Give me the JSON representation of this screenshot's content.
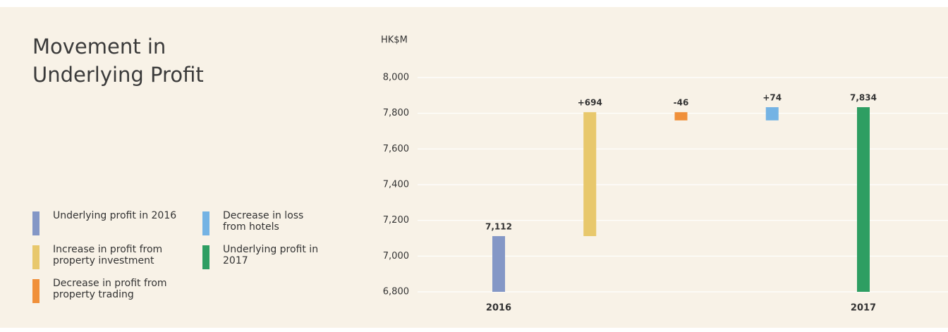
{
  "chart_data": {
    "type": "waterfall",
    "title": "Movement in Underlying Profit",
    "y_axis_label": "HK$M",
    "categories": [
      "2016",
      null,
      null,
      null,
      "2017"
    ],
    "values": [
      7112,
      694,
      -46,
      74,
      7834
    ],
    "value_labels": [
      "7,112",
      "+694",
      "-46",
      "+74",
      "7,834"
    ],
    "colors": [
      "#8497c6",
      "#e8c86c",
      "#f0903a",
      "#74b3e4",
      "#2e9e62"
    ],
    "legend_labels": [
      "Underlying profit in 2016",
      "Increase in profit from property investment",
      "Decrease in profit from property trading",
      "Decrease in loss from hotels",
      "Underlying profit in 2017"
    ],
    "ylim": [
      6800,
      8000
    ],
    "yticks": [
      {
        "value": 6800,
        "label": "6,800"
      },
      {
        "value": 7000,
        "label": "7,000"
      },
      {
        "value": 7200,
        "label": "7,200"
      },
      {
        "value": 7400,
        "label": "7,400"
      },
      {
        "value": 7600,
        "label": "7,600"
      },
      {
        "value": 7800,
        "label": "7,800"
      },
      {
        "value": 8000,
        "label": "8,000"
      }
    ],
    "grid": true
  }
}
